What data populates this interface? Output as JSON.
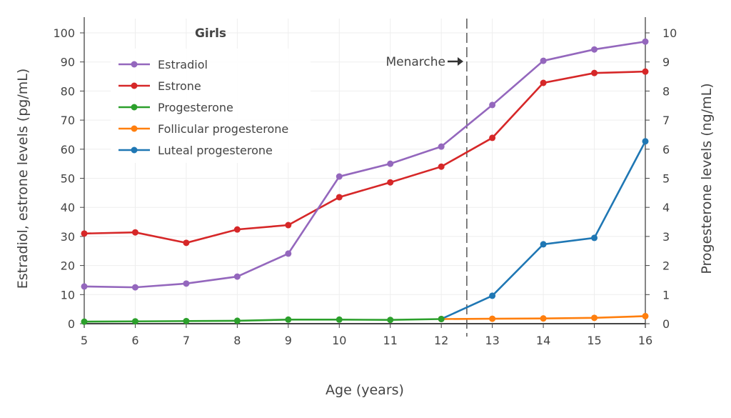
{
  "chart_data": {
    "type": "line",
    "title": "",
    "legend_title": "Girls",
    "legend_position": "top-left",
    "xlabel": "Age (years)",
    "ylabel_left": "Estradiol, estrone levels (pg/mL)",
    "ylabel_right": "Progesterone levels (ng/mL)",
    "xlim": [
      5,
      16
    ],
    "ylim_left": [
      0,
      100
    ],
    "ylim_right": [
      0,
      10
    ],
    "x_ticks": [
      5,
      6,
      7,
      8,
      9,
      10,
      11,
      12,
      13,
      14,
      15,
      16
    ],
    "y_ticks_left": [
      0,
      10,
      20,
      30,
      40,
      50,
      60,
      70,
      80,
      90,
      100
    ],
    "y_ticks_right": [
      0,
      1,
      2,
      3,
      4,
      5,
      6,
      7,
      8,
      9,
      10
    ],
    "grid": true,
    "annotation": {
      "text": "Menarche",
      "x": 12.5,
      "arrow": "right"
    },
    "series": [
      {
        "name": "Estradiol",
        "axis": "left",
        "color": "#9467bd",
        "x": [
          5,
          6,
          7,
          8,
          9,
          10,
          11,
          12,
          13,
          14,
          15,
          16
        ],
        "y": [
          12.8,
          12.5,
          13.8,
          16.2,
          24.1,
          50.6,
          55,
          60.9,
          75.2,
          90.4,
          94.3,
          97
        ]
      },
      {
        "name": "Estrone",
        "axis": "left",
        "color": "#d62728",
        "x": [
          5,
          6,
          7,
          8,
          9,
          10,
          11,
          12,
          13,
          14,
          15,
          16
        ],
        "y": [
          31,
          31.4,
          27.8,
          32.4,
          33.9,
          43.5,
          48.6,
          54,
          63.9,
          82.8,
          86.2,
          86.7
        ]
      },
      {
        "name": "Progesterone",
        "axis": "right",
        "color": "#2ca02c",
        "x": [
          5,
          6,
          7,
          8,
          9,
          10,
          11,
          12
        ],
        "y": [
          0.07,
          0.08,
          0.09,
          0.1,
          0.14,
          0.14,
          0.13,
          0.16
        ]
      },
      {
        "name": "Follicular progesterone",
        "axis": "right",
        "color": "#ff7f0e",
        "x": [
          12,
          13,
          14,
          15,
          16
        ],
        "y": [
          0.16,
          0.17,
          0.18,
          0.2,
          0.26
        ]
      },
      {
        "name": "Luteal progesterone",
        "axis": "right",
        "color": "#1f77b4",
        "x": [
          12,
          13,
          14,
          15,
          16
        ],
        "y": [
          0.16,
          0.96,
          2.73,
          2.95,
          6.27
        ]
      }
    ]
  }
}
